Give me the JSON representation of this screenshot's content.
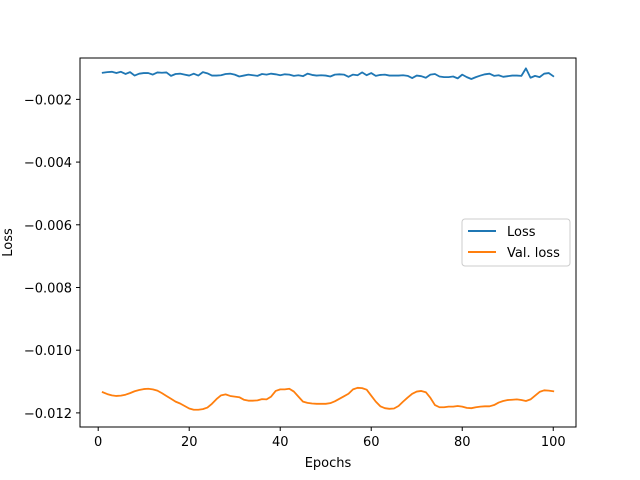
{
  "chart_data": {
    "type": "line",
    "title": "",
    "xlabel": "Epochs",
    "ylabel": "Loss",
    "xlim": [
      -4,
      105
    ],
    "ylim": [
      -0.01245,
      -0.00068
    ],
    "xticks": [
      0,
      20,
      40,
      60,
      80,
      100
    ],
    "xtick_labels": [
      "0",
      "20",
      "40",
      "60",
      "80",
      "100"
    ],
    "yticks": [
      -0.002,
      -0.004,
      -0.006,
      -0.008,
      -0.01,
      -0.012
    ],
    "ytick_labels": [
      "−0.002",
      "−0.004",
      "−0.006",
      "−0.008",
      "−0.010",
      "−0.012"
    ],
    "grid": false,
    "legend": {
      "position": "center-right"
    },
    "x": [
      1,
      2,
      3,
      4,
      5,
      6,
      7,
      8,
      9,
      10,
      11,
      12,
      13,
      14,
      15,
      16,
      17,
      18,
      19,
      20,
      21,
      22,
      23,
      24,
      25,
      26,
      27,
      28,
      29,
      30,
      31,
      32,
      33,
      34,
      35,
      36,
      37,
      38,
      39,
      40,
      41,
      42,
      43,
      44,
      45,
      46,
      47,
      48,
      49,
      50,
      51,
      52,
      53,
      54,
      55,
      56,
      57,
      58,
      59,
      60,
      61,
      62,
      63,
      64,
      65,
      66,
      67,
      68,
      69,
      70,
      71,
      72,
      73,
      74,
      75,
      76,
      77,
      78,
      79,
      80,
      81,
      82,
      83,
      84,
      85,
      86,
      87,
      88,
      89,
      90,
      91,
      92,
      93,
      94,
      95,
      96,
      97,
      98,
      99,
      100
    ],
    "series": [
      {
        "name": "Loss",
        "color": "#1f77b4",
        "values": [
          -0.00115,
          -0.00113,
          -0.00112,
          -0.00116,
          -0.00112,
          -0.00119,
          -0.00113,
          -0.00124,
          -0.00118,
          -0.00116,
          -0.00116,
          -0.00121,
          -0.00114,
          -0.00115,
          -0.00114,
          -0.00125,
          -0.00119,
          -0.00118,
          -0.00121,
          -0.00124,
          -0.00118,
          -0.00124,
          -0.00113,
          -0.00117,
          -0.00124,
          -0.00124,
          -0.00123,
          -0.00119,
          -0.00118,
          -0.00121,
          -0.00127,
          -0.00124,
          -0.00121,
          -0.00123,
          -0.00125,
          -0.00119,
          -0.00121,
          -0.00118,
          -0.0012,
          -0.00123,
          -0.0012,
          -0.00121,
          -0.00125,
          -0.00123,
          -0.00126,
          -0.00118,
          -0.00122,
          -0.00124,
          -0.00123,
          -0.00124,
          -0.00127,
          -0.00121,
          -0.0012,
          -0.00121,
          -0.00128,
          -0.00121,
          -0.00123,
          -0.00114,
          -0.00123,
          -0.00116,
          -0.00125,
          -0.00122,
          -0.00121,
          -0.00124,
          -0.00124,
          -0.00124,
          -0.00123,
          -0.00125,
          -0.00132,
          -0.00124,
          -0.00126,
          -0.00131,
          -0.00121,
          -0.00119,
          -0.00127,
          -0.00129,
          -0.00129,
          -0.00127,
          -0.00133,
          -0.00121,
          -0.00129,
          -0.00135,
          -0.00129,
          -0.00124,
          -0.0012,
          -0.00118,
          -0.00125,
          -0.00123,
          -0.00128,
          -0.00126,
          -0.00124,
          -0.00124,
          -0.00125,
          -0.00101,
          -0.00131,
          -0.00125,
          -0.00129,
          -0.00118,
          -0.00116,
          -0.00126
        ]
      },
      {
        "name": "Val. loss",
        "color": "#ff7f0e",
        "values": [
          -0.01134,
          -0.0114,
          -0.01144,
          -0.01146,
          -0.01145,
          -0.01142,
          -0.01137,
          -0.01131,
          -0.01127,
          -0.01124,
          -0.01123,
          -0.01125,
          -0.01129,
          -0.01137,
          -0.01146,
          -0.01155,
          -0.01164,
          -0.0117,
          -0.01178,
          -0.01186,
          -0.0119,
          -0.0119,
          -0.01188,
          -0.01183,
          -0.01171,
          -0.01156,
          -0.01144,
          -0.01141,
          -0.01146,
          -0.01148,
          -0.0115,
          -0.01158,
          -0.01161,
          -0.01161,
          -0.0116,
          -0.01156,
          -0.01157,
          -0.01148,
          -0.0113,
          -0.01125,
          -0.01125,
          -0.01123,
          -0.01132,
          -0.01148,
          -0.01164,
          -0.01168,
          -0.0117,
          -0.01171,
          -0.01171,
          -0.01171,
          -0.01169,
          -0.01163,
          -0.01155,
          -0.01147,
          -0.01139,
          -0.01125,
          -0.0112,
          -0.01121,
          -0.01126,
          -0.01145,
          -0.01164,
          -0.01179,
          -0.01185,
          -0.01187,
          -0.01186,
          -0.01178,
          -0.01164,
          -0.01151,
          -0.01139,
          -0.01132,
          -0.0113,
          -0.01134,
          -0.01152,
          -0.01175,
          -0.01182,
          -0.01182,
          -0.0118,
          -0.0118,
          -0.01178,
          -0.0118,
          -0.01184,
          -0.01185,
          -0.01182,
          -0.0118,
          -0.01179,
          -0.01179,
          -0.01175,
          -0.01167,
          -0.01162,
          -0.01159,
          -0.01158,
          -0.01157,
          -0.01159,
          -0.01162,
          -0.01157,
          -0.01145,
          -0.01133,
          -0.01128,
          -0.01129,
          -0.01131
        ]
      }
    ]
  }
}
